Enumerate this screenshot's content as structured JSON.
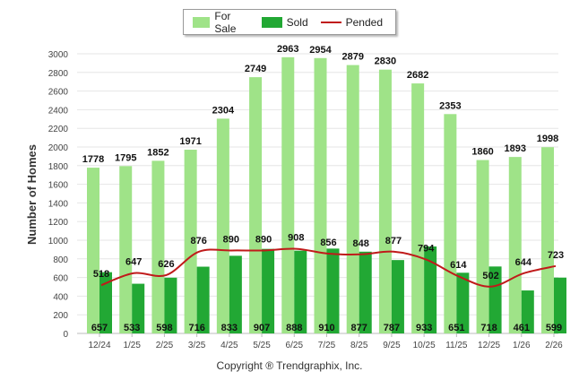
{
  "chart_data": {
    "type": "bar",
    "ylabel": "Number of Homes",
    "ylim": [
      0,
      3000
    ],
    "ytick_step": 200,
    "categories": [
      "12/24",
      "1/25",
      "2/25",
      "3/25",
      "4/25",
      "5/25",
      "6/25",
      "7/25",
      "8/25",
      "9/25",
      "10/25",
      "11/25",
      "12/25",
      "1/26",
      "2/26"
    ],
    "series": [
      {
        "name": "For Sale",
        "kind": "bar",
        "color": "#9fe388",
        "values": [
          1778,
          1795,
          1852,
          1971,
          2304,
          2749,
          2963,
          2954,
          2879,
          2830,
          2682,
          2353,
          1860,
          1893,
          1998
        ]
      },
      {
        "name": "Sold",
        "kind": "bar",
        "color": "#22a834",
        "values": [
          657,
          533,
          598,
          716,
          833,
          907,
          888,
          910,
          877,
          787,
          933,
          651,
          718,
          461,
          599
        ]
      },
      {
        "name": "Pended",
        "kind": "line",
        "color": "#c01a1a",
        "values": [
          518,
          647,
          626,
          876,
          890,
          890,
          908,
          856,
          848,
          877,
          794,
          614,
          502,
          644,
          723
        ]
      }
    ],
    "legend_position": "top-center",
    "grid": true
  },
  "copyright": "Copyright ® Trendgraphix, Inc."
}
